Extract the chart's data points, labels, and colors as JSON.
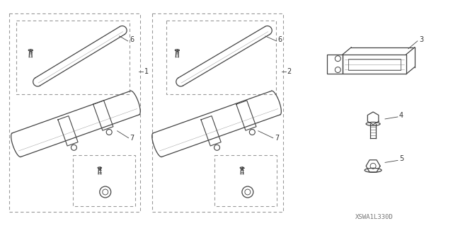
{
  "background_color": "#ffffff",
  "line_color": "#444444",
  "dashed_box_color": "#999999",
  "label_color": "#333333",
  "diagram_code": "XSWA1L330D",
  "figsize": [
    6.4,
    3.19
  ],
  "dpi": 100
}
